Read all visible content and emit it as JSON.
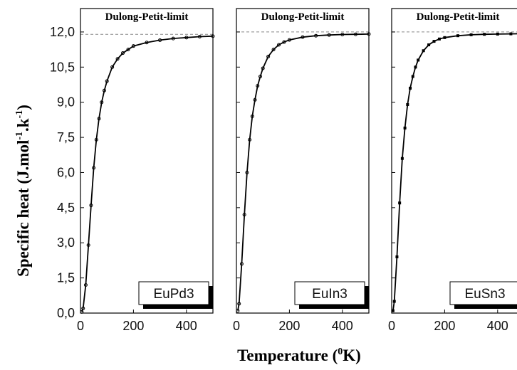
{
  "chart_data": [
    {
      "type": "line",
      "compound": "EuPd3",
      "annotation": "Dulong-Petit-limit",
      "dulong_petit_limit": 11.9,
      "marker": "circle",
      "xlim": [
        0,
        500
      ],
      "ylim": [
        0,
        13
      ],
      "x": [
        5,
        10,
        20,
        30,
        40,
        50,
        60,
        70,
        80,
        90,
        100,
        120,
        140,
        160,
        180,
        200,
        250,
        300,
        350,
        400,
        450,
        500
      ],
      "y": [
        0.05,
        0.2,
        1.2,
        2.9,
        4.6,
        6.2,
        7.4,
        8.3,
        9.0,
        9.5,
        9.9,
        10.5,
        10.85,
        11.1,
        11.25,
        11.4,
        11.55,
        11.65,
        11.72,
        11.76,
        11.8,
        11.82
      ]
    },
    {
      "type": "line",
      "compound": "EuIn3",
      "annotation": "Dulong-Petit-limit",
      "dulong_petit_limit": 12.0,
      "marker": "circle",
      "xlim": [
        0,
        500
      ],
      "ylim": [
        0,
        13
      ],
      "x": [
        5,
        10,
        20,
        30,
        40,
        50,
        60,
        70,
        80,
        90,
        100,
        120,
        140,
        160,
        180,
        200,
        250,
        300,
        350,
        400,
        450,
        500
      ],
      "y": [
        0.1,
        0.4,
        2.1,
        4.2,
        6.0,
        7.4,
        8.4,
        9.1,
        9.7,
        10.1,
        10.45,
        10.95,
        11.25,
        11.45,
        11.57,
        11.66,
        11.78,
        11.84,
        11.87,
        11.89,
        11.9,
        11.91
      ]
    },
    {
      "type": "line",
      "compound": "EuSn3",
      "annotation": "Dulong-Petit-limit",
      "dulong_petit_limit": 12.0,
      "marker": "square",
      "xlim": [
        0,
        500
      ],
      "ylim": [
        0,
        13
      ],
      "x": [
        5,
        10,
        20,
        30,
        40,
        50,
        60,
        70,
        80,
        90,
        100,
        120,
        140,
        160,
        180,
        200,
        250,
        300,
        350,
        400,
        450,
        500
      ],
      "y": [
        0.1,
        0.5,
        2.4,
        4.7,
        6.6,
        7.9,
        8.9,
        9.6,
        10.1,
        10.5,
        10.8,
        11.2,
        11.45,
        11.6,
        11.7,
        11.76,
        11.84,
        11.88,
        11.9,
        11.91,
        11.92,
        11.93
      ]
    }
  ],
  "y_axis": {
    "title": "Specific heat (J.mol",
    "title_sup1": "-1",
    "title_mid": ".k",
    "title_sup2": "-1",
    "title_end": ")",
    "ticks": [
      "0,0",
      "1,5",
      "3,0",
      "4,5",
      "6,0",
      "7,5",
      "9,0",
      "10,5",
      "12,0"
    ],
    "tick_values": [
      0,
      1.5,
      3,
      4.5,
      6,
      7.5,
      9,
      10.5,
      12
    ]
  },
  "x_axis": {
    "title": "Temperature (",
    "title_sup": "0",
    "title_end": "K)",
    "ticks": [
      "0",
      "200",
      "400"
    ],
    "tick_values": [
      0,
      200,
      400
    ]
  },
  "colors": {
    "curve": "#000000",
    "limit_line": "#888888",
    "frame": "#000000"
  }
}
